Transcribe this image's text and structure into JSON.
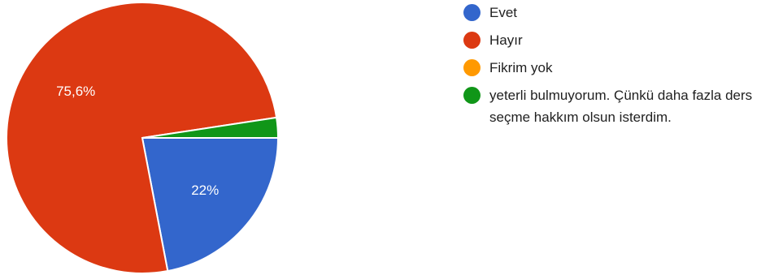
{
  "chart_data": {
    "type": "pie",
    "title": "",
    "categories": [
      "Evet",
      "Hayır",
      "Fikrim yok",
      "yeterli bulmuyorum. Çünkü daha fazla ders seçme hakkım olsun isterdim."
    ],
    "values": [
      22.0,
      75.6,
      0.0,
      2.4
    ],
    "slice_labels": [
      "22%",
      "75,6%",
      "",
      ""
    ],
    "colors": [
      "#3366cc",
      "#dc3912",
      "#ff9900",
      "#109618"
    ],
    "legend_position": "right"
  }
}
